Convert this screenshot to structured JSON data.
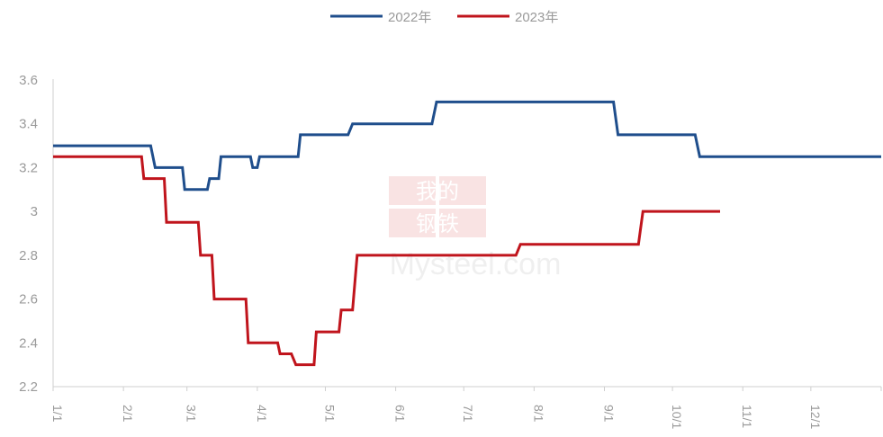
{
  "chart_data": {
    "type": "line",
    "title": "",
    "xlabel": "",
    "ylabel": "",
    "ylim": [
      2.2,
      3.6
    ],
    "y_ticks": [
      "3.6",
      "3.4",
      "3.2",
      "3",
      "2.8",
      "2.6",
      "2.4",
      "2.2"
    ],
    "x_ticks": [
      "1/1",
      "2/1",
      "3/1",
      "4/1",
      "5/1",
      "6/1",
      "7/1",
      "8/1",
      "9/1",
      "10/1",
      "11/1",
      "12/1"
    ],
    "x_unit": "day of year",
    "xlim": [
      1,
      366
    ],
    "grid": false,
    "legend_position": "top-center",
    "watermark": [
      "我的",
      "钢铁",
      "Mysteel.com"
    ],
    "series": [
      {
        "name": "2022年",
        "color": "#1f4e8c",
        "step": true,
        "points": [
          [
            1,
            3.3
          ],
          [
            44,
            3.3
          ],
          [
            46,
            3.2
          ],
          [
            58,
            3.2
          ],
          [
            59,
            3.1
          ],
          [
            69,
            3.1
          ],
          [
            70,
            3.15
          ],
          [
            74,
            3.15
          ],
          [
            75,
            3.25
          ],
          [
            88,
            3.25
          ],
          [
            89,
            3.2
          ],
          [
            91,
            3.2
          ],
          [
            92,
            3.25
          ],
          [
            109,
            3.25
          ],
          [
            110,
            3.35
          ],
          [
            131,
            3.35
          ],
          [
            133,
            3.4
          ],
          [
            168,
            3.4
          ],
          [
            170,
            3.5
          ],
          [
            248,
            3.5
          ],
          [
            250,
            3.35
          ],
          [
            284,
            3.35
          ],
          [
            286,
            3.25
          ],
          [
            366,
            3.25
          ]
        ]
      },
      {
        "name": "2023年",
        "color": "#c0141c",
        "step": true,
        "points": [
          [
            1,
            3.25
          ],
          [
            40,
            3.25
          ],
          [
            41,
            3.15
          ],
          [
            50,
            3.15
          ],
          [
            51,
            2.95
          ],
          [
            65,
            2.95
          ],
          [
            66,
            2.8
          ],
          [
            71,
            2.8
          ],
          [
            72,
            2.6
          ],
          [
            86,
            2.6
          ],
          [
            87,
            2.4
          ],
          [
            100,
            2.4
          ],
          [
            101,
            2.35
          ],
          [
            106,
            2.35
          ],
          [
            108,
            2.3
          ],
          [
            116,
            2.3
          ],
          [
            117,
            2.45
          ],
          [
            127,
            2.45
          ],
          [
            128,
            2.55
          ],
          [
            133,
            2.55
          ],
          [
            135,
            2.8
          ],
          [
            205,
            2.8
          ],
          [
            207,
            2.85
          ],
          [
            259,
            2.85
          ],
          [
            261,
            3.0
          ],
          [
            295,
            3.0
          ]
        ]
      }
    ]
  }
}
